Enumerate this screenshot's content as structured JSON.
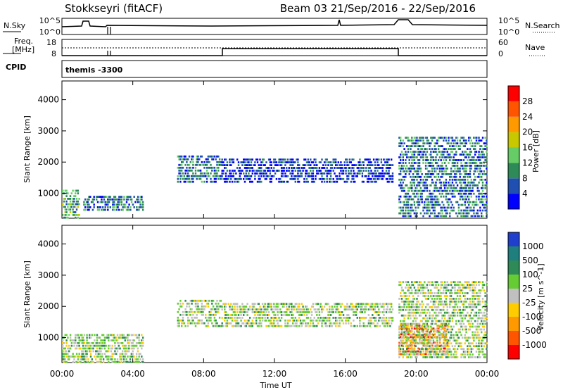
{
  "header": {
    "title_left": "Stokkseyri (fitACF)",
    "title_right": "Beam 03  21/Sep/2016 - 22/Sep/2016"
  },
  "labels": {
    "nsky": "N.Sky",
    "nsearch": "N.Search",
    "freq_line1": "Freq.",
    "freq_line2": "[MHz]",
    "nave": "Nave",
    "cpid": "CPID",
    "cpid_value": "themis -3300"
  },
  "noise_panel": {
    "left_ticks": [
      "10^5",
      "10^0"
    ],
    "right_ticks": [
      "10^5",
      "10^0"
    ]
  },
  "freq_panel": {
    "left_ticks": [
      "18",
      "8"
    ],
    "right_ticks": [
      "60",
      "0"
    ]
  },
  "time_ticks": [
    "00:00",
    "04:00",
    "08:00",
    "12:00",
    "16:00",
    "20:00",
    "00:00"
  ],
  "xlabel": "Time UT",
  "colors": {
    "power": [
      "#0000ff",
      "#1f4fb0",
      "#2e8b57",
      "#66cd66",
      "#c8c800",
      "#ff9900",
      "#ff5500",
      "#ff0000"
    ],
    "velocity": [
      "#1f3fcc",
      "#1f7f7f",
      "#2e8b57",
      "#66cc33",
      "#c0c0c0",
      "#ffcc00",
      "#ff9900",
      "#ff5500",
      "#ff0000"
    ]
  },
  "chart_data": [
    {
      "type": "heatmap",
      "name": "power",
      "ylabel": "Slant Range [km]",
      "xlim": [
        0,
        24
      ],
      "ylim": [
        200,
        4600
      ],
      "yticks": [
        "1000",
        "2000",
        "3000",
        "4000"
      ],
      "colorbar": {
        "label": "Power [dB]",
        "ticks": [
          "4",
          "8",
          "12",
          "16",
          "20",
          "24",
          "28"
        ]
      },
      "regions": [
        {
          "t": [
            0.0,
            1.0
          ],
          "r": [
            250,
            1200
          ],
          "level": 3
        },
        {
          "t": [
            1.2,
            4.6
          ],
          "r": [
            500,
            1000
          ],
          "level": 2
        },
        {
          "t": [
            6.5,
            9.0
          ],
          "r": [
            1400,
            2300
          ],
          "level": 2
        },
        {
          "t": [
            9.0,
            18.7
          ],
          "r": [
            1400,
            2200
          ],
          "level": 1
        },
        {
          "t": [
            19.0,
            24.0
          ],
          "r": [
            300,
            2900
          ],
          "level": 2
        }
      ]
    },
    {
      "type": "heatmap",
      "name": "velocity",
      "ylabel": "Slant Range [km]",
      "xlim": [
        0,
        24
      ],
      "ylim": [
        200,
        4600
      ],
      "yticks": [
        "1000",
        "2000",
        "3000",
        "4000"
      ],
      "colorbar": {
        "label": "Velocity [m s^-1]",
        "ticks": [
          "1000",
          "500",
          "100",
          "25",
          "-25",
          "-100",
          "-500",
          "-1000"
        ]
      },
      "regions": [
        {
          "t": [
            0.0,
            4.6
          ],
          "r": [
            250,
            1200
          ],
          "level": 4
        },
        {
          "t": [
            6.5,
            9.0
          ],
          "r": [
            1400,
            2300
          ],
          "level": 4
        },
        {
          "t": [
            9.0,
            18.7
          ],
          "r": [
            1400,
            2200
          ],
          "level": 4
        },
        {
          "t": [
            19.0,
            21.8
          ],
          "r": [
            500,
            1500
          ],
          "level": 7
        },
        {
          "t": [
            19.0,
            24.0
          ],
          "r": [
            400,
            2900
          ],
          "level": 4
        }
      ]
    }
  ]
}
